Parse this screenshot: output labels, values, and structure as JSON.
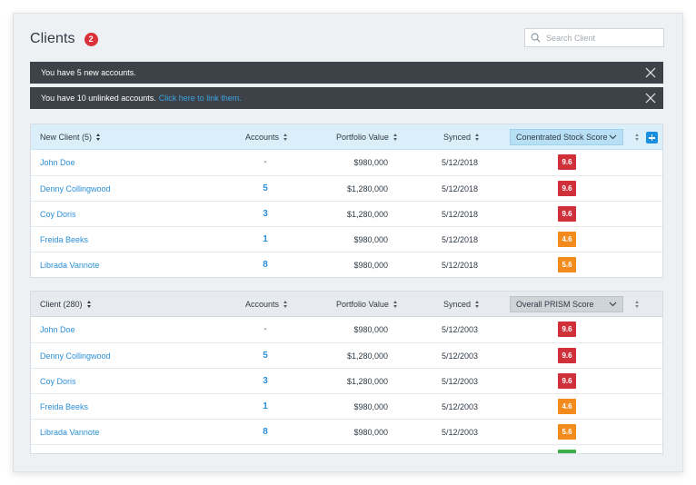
{
  "header": {
    "title": "Clients",
    "badge_count": "2",
    "search_placeholder": "Search Client"
  },
  "alerts": [
    {
      "text": "You have 5 new accounts.",
      "link": ""
    },
    {
      "text": "You have 10 unlinked accounts.",
      "link": "Click here to link them."
    }
  ],
  "colors": {
    "score_red": "#d0303a",
    "score_orange": "#f28a1c",
    "score_green": "#3fae49",
    "link_blue": "#2b8fd8"
  },
  "new_clients_table": {
    "headers": {
      "client": "New Client (5)",
      "accounts": "Accounts",
      "portfolio": "Portfolio Value",
      "synced": "Synced",
      "score_select": "Conentrated Stock Score"
    },
    "rows": [
      {
        "name": "John Doe",
        "accounts": "-",
        "value": "$980,000",
        "synced": "5/12/2018",
        "score": "9.6",
        "level": "red"
      },
      {
        "name": "Denny Collingwood",
        "accounts": "5",
        "value": "$1,280,000",
        "synced": "5/12/2018",
        "score": "9.6",
        "level": "red"
      },
      {
        "name": "Coy Doris",
        "accounts": "3",
        "value": "$1,280,000",
        "synced": "5/12/2018",
        "score": "9.6",
        "level": "red"
      },
      {
        "name": "Freida Beeks",
        "accounts": "1",
        "value": "$980,000",
        "synced": "5/12/2018",
        "score": "4.6",
        "level": "orange"
      },
      {
        "name": "Librada Vannote",
        "accounts": "8",
        "value": "$980,000",
        "synced": "5/12/2018",
        "score": "5.6",
        "level": "orange"
      }
    ]
  },
  "clients_table": {
    "headers": {
      "client": "Client (280)",
      "accounts": "Accounts",
      "portfolio": "Portfolio Value",
      "synced": "Synced",
      "score_select": "Overall PRISM Score"
    },
    "rows": [
      {
        "name": "John Doe",
        "accounts": "-",
        "value": "$980,000",
        "synced": "5/12/2003",
        "score": "9.6",
        "level": "red"
      },
      {
        "name": "Denny Collingwood",
        "accounts": "5",
        "value": "$1,280,000",
        "synced": "5/12/2003",
        "score": "9.6",
        "level": "red"
      },
      {
        "name": "Coy Doris",
        "accounts": "3",
        "value": "$1,280,000",
        "synced": "5/12/2003",
        "score": "9.6",
        "level": "red"
      },
      {
        "name": "Freida Beeks",
        "accounts": "1",
        "value": "$980,000",
        "synced": "5/12/2003",
        "score": "4.6",
        "level": "orange"
      },
      {
        "name": "Librada Vannote",
        "accounts": "8",
        "value": "$980,000",
        "synced": "5/12/2003",
        "score": "5.6",
        "level": "orange"
      },
      {
        "name": "",
        "accounts": "",
        "value": "",
        "synced": "",
        "score": "",
        "level": "green"
      }
    ]
  }
}
